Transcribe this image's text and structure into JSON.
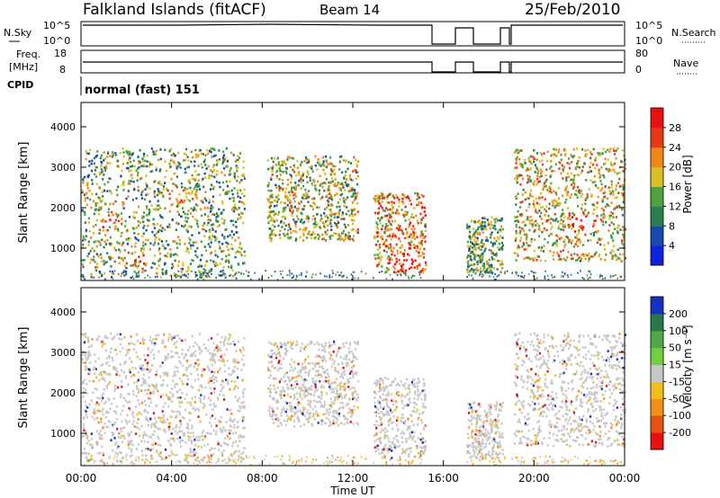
{
  "header": {
    "station": "Falkland Islands (fitACF)",
    "beam": "Beam 14",
    "date": "25/Feb/2010"
  },
  "nsky_panel": {
    "left_label": "N.Sky",
    "right_label": "N.Search",
    "left_ticks": [
      "10^5",
      "10^0"
    ],
    "right_ticks": [
      "10^5",
      "10^0"
    ]
  },
  "freq_panel": {
    "left_label_line1": "Freq.",
    "left_label_line2": "[MHz]",
    "right_label": "Nave",
    "left_ticks": [
      "18",
      "8"
    ],
    "right_ticks": [
      "80",
      "0"
    ]
  },
  "cpid": {
    "label": "CPID",
    "mode": "normal (fast) 151"
  },
  "axes": {
    "ylabel": "Slant Range [km]",
    "xlabel": "Time UT",
    "y_ticks": [
      "1000",
      "2000",
      "3000",
      "4000"
    ],
    "x_ticks": [
      "00:00",
      "04:00",
      "08:00",
      "12:00",
      "16:00",
      "20:00",
      "00:00"
    ]
  },
  "colorbars": {
    "power": {
      "label": "Power [dB]",
      "ticks": [
        "4",
        "8",
        "12",
        "16",
        "20",
        "24",
        "28"
      ],
      "colors": [
        "#1020e0",
        "#1848b0",
        "#288050",
        "#50a040",
        "#d8c020",
        "#f08818",
        "#e83818",
        "#e81010"
      ]
    },
    "velocity": {
      "label": "Velocity [m s⁻¹]",
      "ticks": [
        "200",
        "100",
        "50",
        "15",
        "-15",
        "-50",
        "-100",
        "-200"
      ],
      "colors": [
        "#1830c0",
        "#287848",
        "#50a848",
        "#70d040",
        "#c8c8c8",
        "#f0c018",
        "#f09018",
        "#e85010",
        "#e81010"
      ]
    }
  },
  "chart_data": [
    {
      "type": "heatmap",
      "name": "Power",
      "xlabel": "Time UT",
      "ylabel": "Slant Range [km]",
      "xlim": [
        0,
        24
      ],
      "ylim": [
        200,
        4600
      ],
      "colorbar_label": "Power [dB]",
      "colorbar_range": [
        0,
        32
      ],
      "echo_regions": [
        {
          "t0": 0.0,
          "t1": 7.2,
          "r0": 300,
          "r1": 3500,
          "level_db": 14
        },
        {
          "t0": 8.2,
          "t1": 12.2,
          "r0": 1200,
          "r1": 3300,
          "level_db": 16
        },
        {
          "t0": 12.9,
          "t1": 15.2,
          "r0": 400,
          "r1": 2400,
          "level_db": 22
        },
        {
          "t0": 17.0,
          "t1": 18.6,
          "r0": 400,
          "r1": 1800,
          "level_db": 14
        },
        {
          "t0": 19.1,
          "t1": 24.0,
          "r0": 700,
          "r1": 3500,
          "level_db": 18
        }
      ],
      "max_power_features": [
        {
          "t": 1.0,
          "r": 1700,
          "level_db": 26
        },
        {
          "t": 4.2,
          "r": 2300,
          "level_db": 27
        },
        {
          "t": 2.5,
          "r": 800,
          "level_db": 26
        },
        {
          "t": 14.5,
          "r": 700,
          "level_db": 30
        },
        {
          "t": 22.0,
          "r": 1700,
          "level_db": 24
        }
      ]
    },
    {
      "type": "heatmap",
      "name": "Velocity",
      "xlabel": "Time UT",
      "ylabel": "Slant Range [km]",
      "xlim": [
        0,
        24
      ],
      "ylim": [
        200,
        4600
      ],
      "colorbar_label": "Velocity [m s⁻¹]",
      "colorbar_range": [
        -200,
        200
      ],
      "echo_regions": [
        {
          "t0": 0.0,
          "t1": 7.2,
          "r0": 300,
          "r1": 3500,
          "velocity": 0
        },
        {
          "t0": 8.2,
          "t1": 12.2,
          "r0": 1200,
          "r1": 3300,
          "velocity": 0
        },
        {
          "t0": 12.9,
          "t1": 15.2,
          "r0": 400,
          "r1": 2400,
          "velocity": 0
        },
        {
          "t0": 17.0,
          "t1": 18.6,
          "r0": 400,
          "r1": 1800,
          "velocity": 0
        },
        {
          "t0": 19.1,
          "t1": 24.0,
          "r0": 700,
          "r1": 3500,
          "velocity": 0
        }
      ],
      "notable_features": [
        {
          "t": 8.3,
          "r": 2300,
          "velocity": 30
        },
        {
          "t": 7.3,
          "r": 800,
          "velocity": -80
        }
      ]
    }
  ]
}
